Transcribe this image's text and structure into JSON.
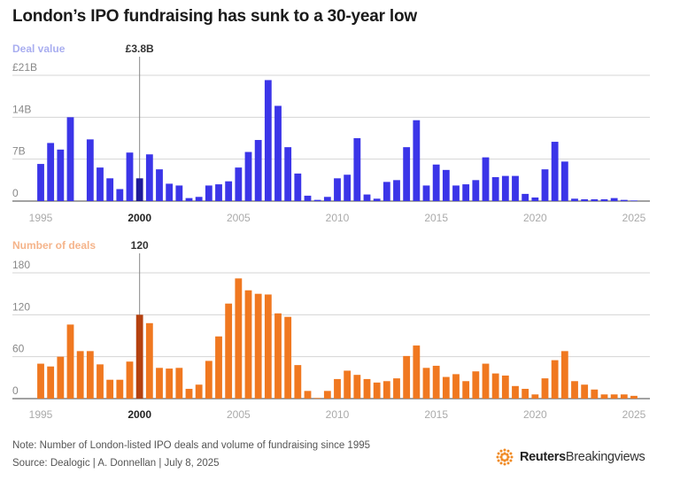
{
  "title": "London’s IPO fundraising has sunk to a 30-year low",
  "footer": {
    "note": "Note: Number of London-listed IPO deals and volume of fundraising since 1995",
    "source": "Source: Dealogic | A. Donnellan | July 8, 2025",
    "brand_bold": "Reuters",
    "brand_light": "Breakingviews"
  },
  "colors": {
    "deal_value": "#3b35e8",
    "deal_value_highlight": "#1e1a99",
    "deal_value_label": "#a9aef0",
    "deals": "#f07820",
    "deals_highlight": "#b5410f",
    "deals_label": "#f5b48a",
    "brand": "#f08a24"
  },
  "chart_data": [
    {
      "type": "bar",
      "title": "Deal value",
      "x": [
        1995,
        1995.5,
        1996,
        1996.5,
        1997,
        1997.5,
        1998,
        1998.5,
        1999,
        1999.5,
        2000,
        2000.5,
        2001,
        2001.5,
        2002,
        2002.5,
        2003,
        2003.5,
        2004,
        2004.5,
        2005,
        2005.5,
        2006,
        2006.5,
        2007,
        2007.5,
        2008,
        2008.5,
        2009,
        2009.5,
        2010,
        2010.5,
        2011,
        2011.5,
        2012,
        2012.5,
        2013,
        2013.5,
        2014,
        2014.5,
        2015,
        2015.5,
        2016,
        2016.5,
        2017,
        2017.5,
        2018,
        2018.5,
        2019,
        2019.5,
        2020,
        2020.5,
        2021,
        2021.5,
        2022,
        2022.5,
        2023,
        2023.5,
        2024,
        2024.5,
        2025
      ],
      "values": [
        6.2,
        9.7,
        8.6,
        14.0,
        0,
        10.3,
        5.6,
        3.8,
        2.0,
        8.1,
        3.8,
        7.8,
        5.3,
        2.9,
        2.6,
        0.5,
        0.7,
        2.6,
        2.8,
        3.3,
        5.6,
        8.2,
        10.2,
        20.2,
        15.9,
        9.0,
        4.6,
        0.9,
        0.2,
        0.7,
        3.8,
        4.4,
        10.5,
        1.1,
        0.4,
        3.2,
        3.5,
        9.0,
        13.5,
        2.6,
        6.1,
        5.2,
        2.6,
        2.8,
        3.5,
        7.3,
        4.0,
        4.2,
        4.2,
        1.2,
        0.6,
        5.3,
        9.9,
        6.6,
        0.4,
        0.3,
        0.3,
        0.3,
        0.5,
        0.2,
        0.1
      ],
      "highlight": {
        "x": 2000,
        "label": "£3.8B"
      },
      "y_ticks": [
        "0",
        "7B",
        "14B",
        "£21B"
      ],
      "y_tick_values": [
        0,
        7,
        14,
        21
      ],
      "ylim": [
        0,
        21
      ],
      "x_ticks": [
        "1995",
        "2000",
        "2005",
        "2010",
        "2015",
        "2020",
        "2025"
      ],
      "xlim": [
        1995,
        2025
      ]
    },
    {
      "type": "bar",
      "title": "Number of deals",
      "x": [
        1995,
        1995.5,
        1996,
        1996.5,
        1997,
        1997.5,
        1998,
        1998.5,
        1999,
        1999.5,
        2000,
        2000.5,
        2001,
        2001.5,
        2002,
        2002.5,
        2003,
        2003.5,
        2004,
        2004.5,
        2005,
        2005.5,
        2006,
        2006.5,
        2007,
        2007.5,
        2008,
        2008.5,
        2009,
        2009.5,
        2010,
        2010.5,
        2011,
        2011.5,
        2012,
        2012.5,
        2013,
        2013.5,
        2014,
        2014.5,
        2015,
        2015.5,
        2016,
        2016.5,
        2017,
        2017.5,
        2018,
        2018.5,
        2019,
        2019.5,
        2020,
        2020.5,
        2021,
        2021.5,
        2022,
        2022.5,
        2023,
        2023.5,
        2024,
        2024.5,
        2025
      ],
      "values": [
        50,
        46,
        60,
        106,
        68,
        68,
        49,
        27,
        27,
        53,
        120,
        108,
        44,
        43,
        44,
        14,
        20,
        54,
        89,
        136,
        172,
        155,
        150,
        149,
        122,
        117,
        48,
        11,
        1,
        11,
        28,
        40,
        34,
        28,
        23,
        25,
        29,
        61,
        76,
        44,
        47,
        31,
        35,
        25,
        39,
        50,
        36,
        33,
        18,
        14,
        6,
        29,
        55,
        68,
        25,
        20,
        13,
        6,
        6,
        6,
        4
      ],
      "highlight": {
        "x": 2000,
        "label": "120"
      },
      "y_ticks": [
        "0",
        "60",
        "120",
        "180"
      ],
      "y_tick_values": [
        0,
        60,
        120,
        180
      ],
      "ylim": [
        0,
        180
      ],
      "x_ticks": [
        "1995",
        "2000",
        "2005",
        "2010",
        "2015",
        "2020",
        "2025"
      ],
      "xlim": [
        1995,
        2025
      ]
    }
  ]
}
